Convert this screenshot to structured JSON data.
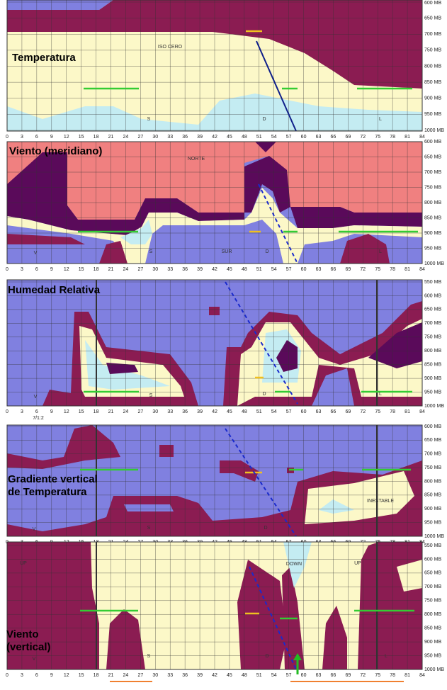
{
  "x_labels": [
    "0",
    "3",
    "6",
    "9",
    "12",
    "15",
    "18",
    "21",
    "24",
    "27",
    "30",
    "33",
    "36",
    "39",
    "42",
    "45",
    "48",
    "51",
    "54",
    "57",
    "60",
    "63",
    "66",
    "69",
    "72",
    "75",
    "78",
    "81",
    "84"
  ],
  "panels": [
    {
      "title": [
        "Temperatura"
      ],
      "y_labels": [
        "600 MB",
        "650 MB",
        "700 MB",
        "750 MB",
        "800 MB",
        "850 MB",
        "900 MB",
        "950 MB",
        "1000 MB"
      ],
      "regions": [
        "ISO CERO",
        "S",
        "D",
        "L"
      ]
    },
    {
      "title": [
        "Viento (meridiano)"
      ],
      "y_labels": [
        "600 MB",
        "650 MB",
        "700 MB",
        "750 MB",
        "800 MB",
        "850 MB",
        "900 MB",
        "950 MB",
        "1000 MB"
      ],
      "regions": [
        "NORTE",
        "V",
        "S",
        "SUR",
        "D",
        "L"
      ]
    },
    {
      "title": [
        "Humedad Relativa"
      ],
      "y_labels": [
        "550 MB",
        "600 MB",
        "650 MB",
        "700 MB",
        "750 MB",
        "800 MB",
        "850 MB",
        "900 MB",
        "950 MB",
        "1000 MB"
      ],
      "regions": [
        "V",
        "S",
        "D",
        "L"
      ],
      "date_label": "7/1:2"
    },
    {
      "title": [
        "Gradiente vertical",
        "de Temperatura"
      ],
      "y_labels": [
        "600 MB",
        "650 MB",
        "700 MB",
        "750 MB",
        "800 MB",
        "850 MB",
        "900 MB",
        "950 MB",
        "1000 MB"
      ],
      "regions": [
        "INESTABLE",
        "V",
        "S",
        "D"
      ]
    },
    {
      "title": [
        "Viento",
        "(vertical)"
      ],
      "y_labels": [
        "550 MB",
        "600 MB",
        "650 MB",
        "700 MB",
        "750 MB",
        "800 MB",
        "850 MB",
        "900 MB",
        "950 MB",
        "1000 MB"
      ],
      "regions": [
        "UP",
        "DOWN",
        "UP",
        "V",
        "S",
        "D",
        "L"
      ]
    }
  ]
}
